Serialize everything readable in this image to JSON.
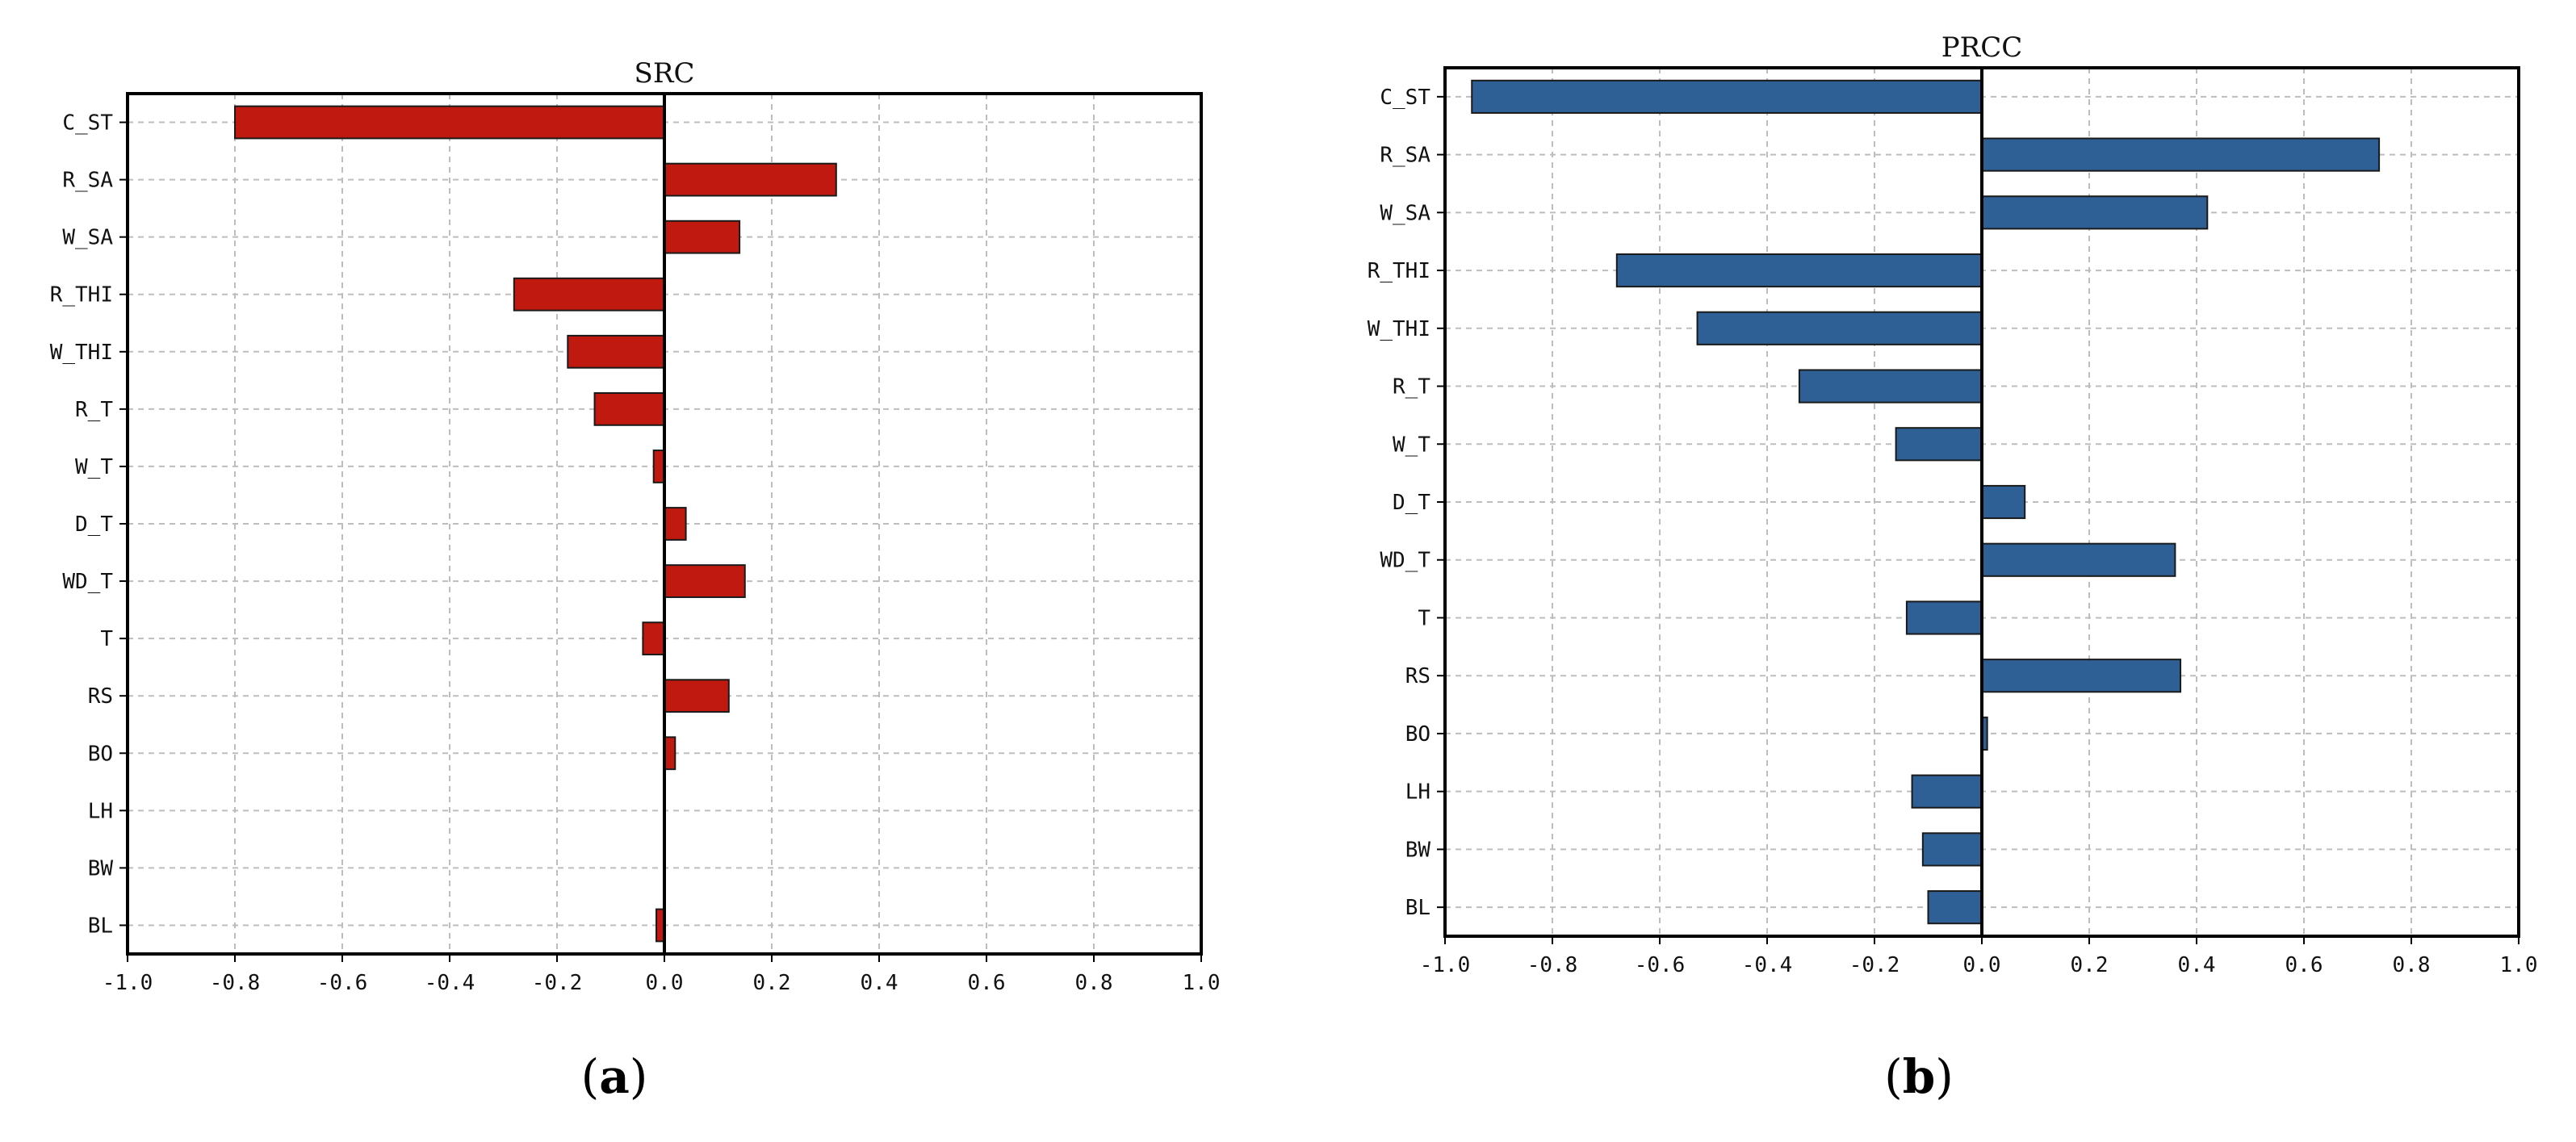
{
  "colors": {
    "src_bar": "#c0190f",
    "prcc_bar": "#2e5f95",
    "bar_edge": "#1a1a1a",
    "grid": "#bdbdbd"
  },
  "panels": [
    {
      "open": "(",
      "letter": "a",
      "close": ")"
    },
    {
      "open": "(",
      "letter": "b",
      "close": ")"
    }
  ],
  "chart_data": [
    {
      "type": "bar",
      "orientation": "horizontal",
      "title": "SRC",
      "categories": [
        "C_ST",
        "R_SA",
        "W_SA",
        "R_THI",
        "W_THI",
        "R_T",
        "W_T",
        "D_T",
        "WD_T",
        "T",
        "RS",
        "BO",
        "LH",
        "BW",
        "BL"
      ],
      "values": [
        -0.8,
        0.32,
        0.14,
        -0.28,
        -0.18,
        -0.13,
        -0.02,
        0.04,
        0.15,
        -0.04,
        0.12,
        0.02,
        0.0,
        0.0,
        -0.015
      ],
      "xlim": [
        -1.0,
        1.0
      ],
      "xticks": [
        "-1.0",
        "-0.8",
        "-0.6",
        "-0.4",
        "-0.2",
        "0.0",
        "0.2",
        "0.4",
        "0.6",
        "0.8",
        "1.0"
      ],
      "grid": true,
      "color": "#c0190f"
    },
    {
      "type": "bar",
      "orientation": "horizontal",
      "title": "PRCC",
      "categories": [
        "C_ST",
        "R_SA",
        "W_SA",
        "R_THI",
        "W_THI",
        "R_T",
        "W_T",
        "D_T",
        "WD_T",
        "T",
        "RS",
        "BO",
        "LH",
        "BW",
        "BL"
      ],
      "values": [
        -0.95,
        0.74,
        0.42,
        -0.68,
        -0.53,
        -0.34,
        -0.16,
        0.08,
        0.36,
        -0.14,
        0.37,
        0.01,
        -0.13,
        -0.11,
        -0.1
      ],
      "xlim": [
        -1.0,
        1.0
      ],
      "xticks": [
        "-1.0",
        "-0.8",
        "-0.6",
        "-0.4",
        "-0.2",
        "0.0",
        "0.2",
        "0.4",
        "0.6",
        "0.8",
        "1.0"
      ],
      "grid": true,
      "color": "#2e5f95"
    }
  ]
}
